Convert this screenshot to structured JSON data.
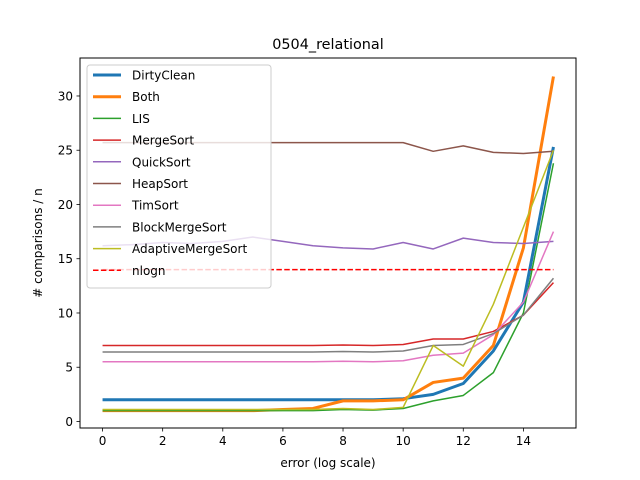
{
  "chart_data": {
    "type": "line",
    "title": "0504_relational",
    "xlabel": "error (log scale)",
    "ylabel": "# comparisons / n",
    "xlim": [
      -0.75,
      15.75
    ],
    "ylim": [
      -0.6,
      33.5
    ],
    "xticks": [
      0,
      2,
      4,
      6,
      8,
      10,
      12,
      14
    ],
    "yticks": [
      0,
      5,
      10,
      15,
      20,
      25,
      30
    ],
    "grid": false,
    "legend_position": "upper-left",
    "x": [
      0,
      1,
      2,
      3,
      4,
      5,
      6,
      7,
      8,
      9,
      10,
      11,
      12,
      13,
      14,
      15
    ],
    "series": [
      {
        "name": "DirtyClean",
        "color": "#1f77b4",
        "width": 3,
        "dash": "",
        "values": [
          2.0,
          2.0,
          2.0,
          2.0,
          2.0,
          2.0,
          2.0,
          2.0,
          2.0,
          2.0,
          2.1,
          2.5,
          3.5,
          6.5,
          11.0,
          25.3
        ]
      },
      {
        "name": "Both",
        "color": "#ff7f0e",
        "width": 3,
        "dash": "",
        "values": [
          1.0,
          1.0,
          1.0,
          1.0,
          1.0,
          1.0,
          1.1,
          1.2,
          1.9,
          1.9,
          2.0,
          3.6,
          4.0,
          7.0,
          16.0,
          31.8
        ]
      },
      {
        "name": "LIS",
        "color": "#2ca02c",
        "width": 1.5,
        "dash": "",
        "values": [
          1.0,
          1.0,
          1.0,
          1.0,
          1.0,
          1.0,
          1.0,
          1.0,
          1.1,
          1.05,
          1.2,
          1.9,
          2.4,
          4.5,
          10.0,
          23.8
        ]
      },
      {
        "name": "MergeSort",
        "color": "#d62728",
        "width": 1.5,
        "dash": "",
        "values": [
          7.0,
          7.0,
          7.0,
          7.0,
          7.0,
          7.0,
          7.0,
          7.0,
          7.05,
          7.0,
          7.1,
          7.6,
          7.6,
          8.3,
          9.8,
          12.8
        ]
      },
      {
        "name": "QuickSort",
        "color": "#9467bd",
        "width": 1.5,
        "dash": "",
        "values": [
          16.2,
          16.3,
          16.5,
          16.4,
          16.6,
          17.0,
          16.6,
          16.2,
          16.0,
          15.9,
          16.5,
          15.9,
          16.9,
          16.5,
          16.4,
          16.6
        ]
      },
      {
        "name": "HeapSort",
        "color": "#8c564b",
        "width": 1.5,
        "dash": "",
        "values": [
          25.7,
          25.7,
          25.7,
          25.7,
          25.7,
          25.7,
          25.7,
          25.7,
          25.7,
          25.7,
          25.7,
          24.9,
          25.4,
          24.8,
          24.7,
          24.9
        ]
      },
      {
        "name": "TimSort",
        "color": "#e377c2",
        "width": 1.5,
        "dash": "",
        "values": [
          5.5,
          5.5,
          5.5,
          5.5,
          5.5,
          5.5,
          5.5,
          5.5,
          5.55,
          5.5,
          5.6,
          6.1,
          6.3,
          8.0,
          11.0,
          17.5
        ]
      },
      {
        "name": "BlockMergeSort",
        "color": "#7f7f7f",
        "width": 1.5,
        "dash": "",
        "values": [
          6.4,
          6.4,
          6.4,
          6.4,
          6.4,
          6.4,
          6.4,
          6.4,
          6.45,
          6.4,
          6.5,
          7.0,
          7.1,
          8.1,
          9.8,
          13.2
        ]
      },
      {
        "name": "AdaptiveMergeSort",
        "color": "#bcbd22",
        "width": 1.5,
        "dash": "",
        "values": [
          1.1,
          1.1,
          1.1,
          1.1,
          1.1,
          1.1,
          1.1,
          1.1,
          1.2,
          1.1,
          1.3,
          7.0,
          5.1,
          10.8,
          17.9,
          25.0
        ]
      },
      {
        "name": "nlogn",
        "color": "#ff0000",
        "width": 1.5,
        "dash": "5.5,2.4",
        "values": [
          14.0,
          14.0,
          14.0,
          14.0,
          14.0,
          14.0,
          14.0,
          14.0,
          14.0,
          14.0,
          14.0,
          14.0,
          14.0,
          14.0,
          14.0,
          14.0
        ]
      }
    ]
  }
}
